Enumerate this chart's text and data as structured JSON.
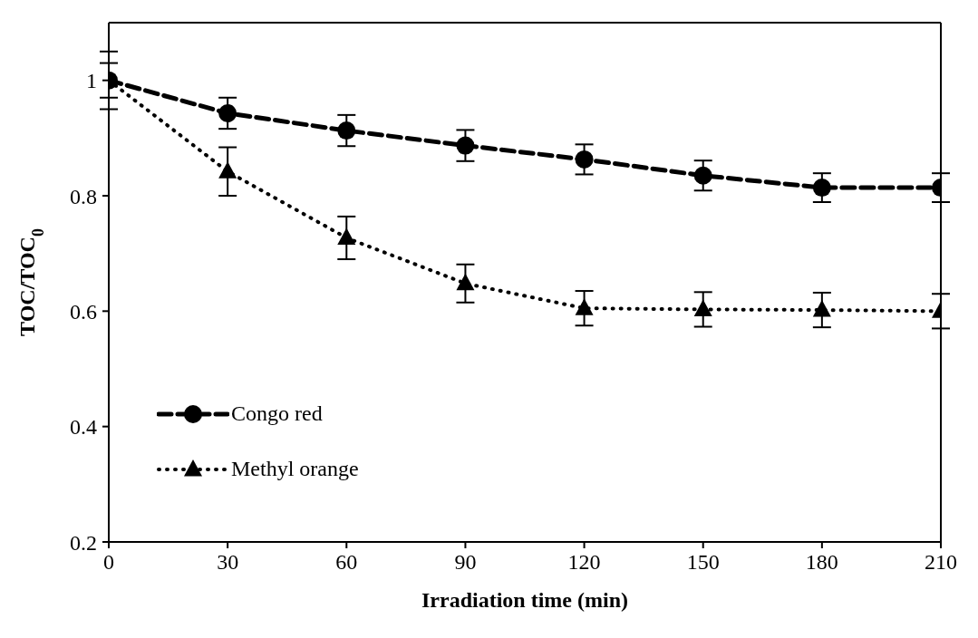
{
  "chart_data": {
    "type": "line",
    "xlabel": "Irradiation time (min)",
    "ylabel": "TOC/TOC$_{0}$",
    "x": [
      0,
      30,
      60,
      90,
      120,
      150,
      180,
      210
    ],
    "series": [
      {
        "name": "Congo red",
        "color": "#000000",
        "marker": "circle",
        "line_style": "dashed",
        "values": [
          1.0,
          0.943,
          0.913,
          0.887,
          0.863,
          0.835,
          0.814,
          0.814
        ],
        "errors": [
          0.03,
          0.027,
          0.027,
          0.027,
          0.026,
          0.026,
          0.025,
          0.025
        ]
      },
      {
        "name": "Methyl orange",
        "color": "#000000",
        "marker": "triangle",
        "line_style": "dotted",
        "values": [
          1.0,
          0.842,
          0.727,
          0.648,
          0.605,
          0.603,
          0.602,
          0.6
        ],
        "errors": [
          0.05,
          0.042,
          0.037,
          0.033,
          0.03,
          0.03,
          0.03,
          0.03
        ]
      }
    ],
    "xlim": [
      0,
      210
    ],
    "xticks": [
      0,
      30,
      60,
      90,
      120,
      150,
      180,
      210
    ],
    "ylim": [
      0.2,
      1.1
    ],
    "yticks": [
      0.2,
      0.4,
      0.6,
      0.8,
      1
    ],
    "grid": false,
    "legend": "bottom left"
  }
}
